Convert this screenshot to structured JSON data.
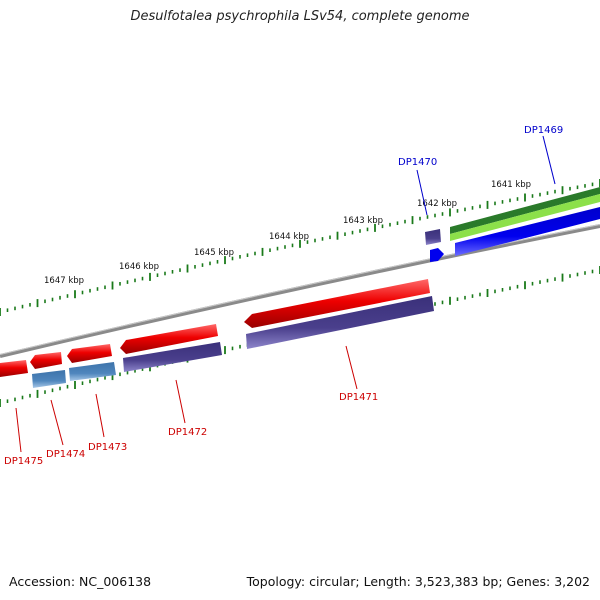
{
  "title": "Desulfotalea psychrophila LSv54, complete genome",
  "footer": {
    "accession": "Accession: NC_006138",
    "summary": "Topology: circular; Length: 3,523,383 bp; Genes: 3,202"
  },
  "scale_labels": [
    "1641 kbp",
    "1642 kbp",
    "1643 kbp",
    "1644 kbp",
    "1645 kbp",
    "1646 kbp",
    "1647 kbp"
  ],
  "genes": [
    {
      "name": "DP1469",
      "color": "#0000cc"
    },
    {
      "name": "DP1470",
      "color": "#0000cc"
    },
    {
      "name": "DP1471",
      "color": "#cc0000"
    },
    {
      "name": "DP1472",
      "color": "#cc0000"
    },
    {
      "name": "DP1473",
      "color": "#cc0000"
    },
    {
      "name": "DP1474",
      "color": "#cc0000"
    },
    {
      "name": "DP1475",
      "color": "#cc0000"
    }
  ],
  "colors": {
    "backbone": "#8a8a8a",
    "ticks": "#1a7a1a",
    "forward_cds": "#ee0000",
    "cds_feature": "#4a3f8c",
    "rna_feature": "#4f86bd",
    "reverse_cds": "#0000ee",
    "outer_green": "#2a7a2a",
    "light_green": "#8ce04a"
  }
}
